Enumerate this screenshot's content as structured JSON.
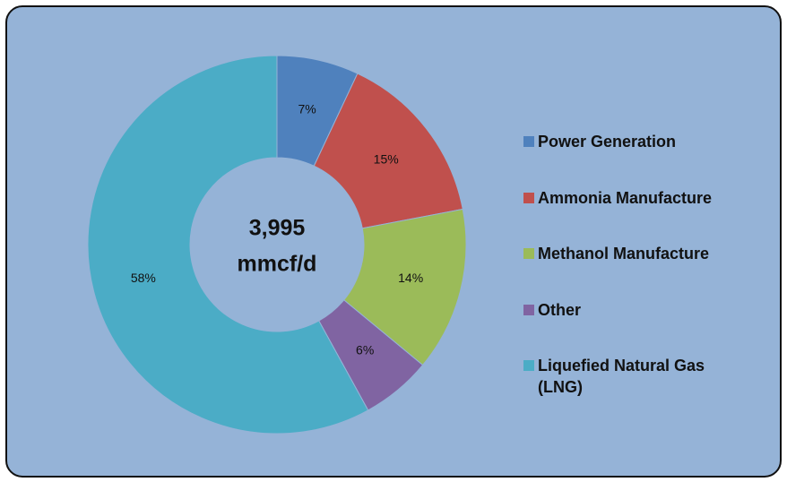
{
  "chart_data": {
    "type": "donut",
    "categories": [
      "Power Generation",
      "Ammonia Manufacture",
      "Methanol Manufacture",
      "Other",
      "Liquefied Natural Gas (LNG)"
    ],
    "values": [
      7,
      15,
      14,
      6,
      58
    ],
    "value_labels": [
      "7%",
      "15%",
      "14%",
      "6%",
      "58%"
    ],
    "colors": [
      "#4f81bd",
      "#c0504d",
      "#9bbb59",
      "#8064a2",
      "#4bacc6"
    ],
    "center_label": [
      "3,995",
      "mmcf/d"
    ],
    "legend": "right"
  }
}
